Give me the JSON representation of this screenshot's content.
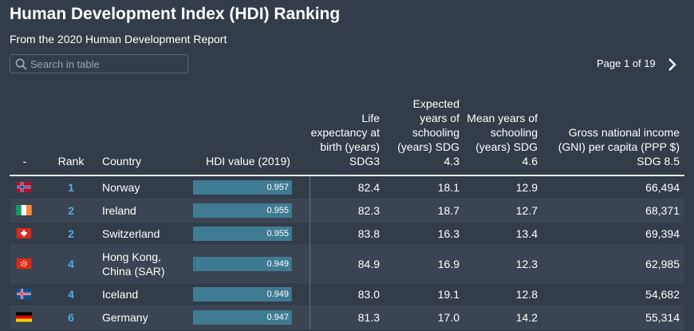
{
  "header": {
    "title": "Human Development Index (HDI) Ranking",
    "subtitle": "From the 2020 Human Development Report"
  },
  "search": {
    "placeholder": "Search in table"
  },
  "pager": {
    "label": "Page 1 of 19"
  },
  "columns": {
    "flag": "-",
    "rank": "Rank",
    "country": "Country",
    "hdi": "HDI value (2019)",
    "life": "Life expectancy at birth (years) SDG3",
    "expected": "Expected years of schooling (years) SDG 4.3",
    "mean": "Mean years of schooling (years) SDG 4.6",
    "gni": "Gross national income (GNI) per capita (PPP $) SDG 8.5"
  },
  "colors": {
    "background": "#333c49",
    "rank": "#4ab0e6",
    "bar": "#3f7b93"
  },
  "rows": [
    {
      "flag": "norway-flag-icon",
      "rank": "1",
      "country": "Norway",
      "hdi": "0.957",
      "life": "82.4",
      "expected": "18.1",
      "mean": "12.9",
      "gni": "66,494"
    },
    {
      "flag": "ireland-flag-icon",
      "rank": "2",
      "country": "Ireland",
      "hdi": "0.955",
      "life": "82.3",
      "expected": "18.7",
      "mean": "12.7",
      "gni": "68,371"
    },
    {
      "flag": "switzerland-flag-icon",
      "rank": "2",
      "country": "Switzerland",
      "hdi": "0.955",
      "life": "83.8",
      "expected": "16.3",
      "mean": "13.4",
      "gni": "69,394"
    },
    {
      "flag": "hong-kong-flag-icon",
      "rank": "4",
      "country": "Hong Kong, China (SAR)",
      "hdi": "0.949",
      "life": "84.9",
      "expected": "16.9",
      "mean": "12.3",
      "gni": "62,985"
    },
    {
      "flag": "iceland-flag-icon",
      "rank": "4",
      "country": "Iceland",
      "hdi": "0.949",
      "life": "83.0",
      "expected": "19.1",
      "mean": "12.8",
      "gni": "54,682"
    },
    {
      "flag": "germany-flag-icon",
      "rank": "6",
      "country": "Germany",
      "hdi": "0.947",
      "life": "81.3",
      "expected": "17.0",
      "mean": "14.2",
      "gni": "55,314"
    }
  ]
}
